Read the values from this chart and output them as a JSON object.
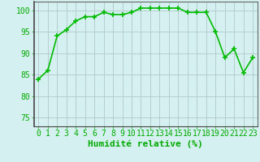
{
  "x": [
    0,
    1,
    2,
    3,
    4,
    5,
    6,
    7,
    8,
    9,
    10,
    11,
    12,
    13,
    14,
    15,
    16,
    17,
    18,
    19,
    20,
    21,
    22,
    23
  ],
  "y": [
    84,
    86,
    94,
    95.5,
    97.5,
    98.5,
    98.5,
    99.5,
    99,
    99,
    99.5,
    100.5,
    100.5,
    100.5,
    100.5,
    100.5,
    99.5,
    99.5,
    99.5,
    95,
    89,
    91,
    85.5,
    89
  ],
  "line_color": "#00bb00",
  "marker": "+",
  "bg_color": "#d5f0f0",
  "grid_color": "#b0c8c8",
  "xlabel": "Humidité relative (%)",
  "ylim": [
    73,
    102
  ],
  "xlim": [
    -0.5,
    23.5
  ],
  "yticks": [
    75,
    80,
    85,
    90,
    95,
    100
  ],
  "xticks": [
    0,
    1,
    2,
    3,
    4,
    5,
    6,
    7,
    8,
    9,
    10,
    11,
    12,
    13,
    14,
    15,
    16,
    17,
    18,
    19,
    20,
    21,
    22,
    23
  ],
  "xlabel_color": "#00aa00",
  "xlabel_fontsize": 8,
  "tick_fontsize": 7,
  "tick_color": "#00aa00",
  "line_width": 1.2,
  "marker_size": 4,
  "spine_color": "#666666"
}
